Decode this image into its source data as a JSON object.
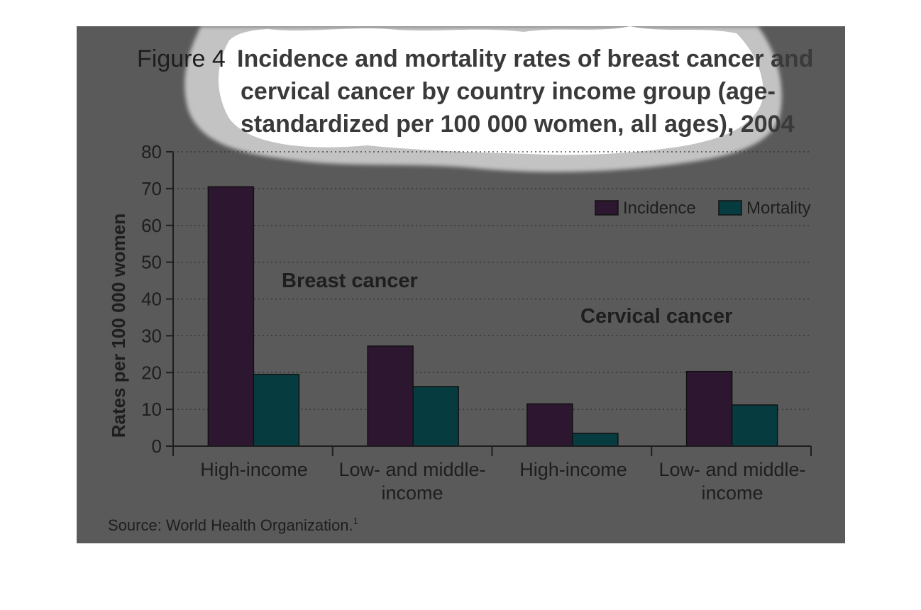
{
  "chart_data": {
    "type": "bar",
    "figure_label": "Figure 4",
    "title_lines": [
      "Incidence and mortality rates of breast cancer and",
      "cervical cancer by country income group (age-",
      "standardized per 100 000 women, all ages), 2004"
    ],
    "ylabel": "Rates per 100 000 women",
    "xlabel": "",
    "ylim": [
      0,
      80
    ],
    "yticks": [
      0,
      10,
      20,
      30,
      40,
      50,
      60,
      70,
      80
    ],
    "categories": [
      [
        "High-income"
      ],
      [
        "Low- and middle-",
        "income"
      ],
      [
        "High-income"
      ],
      [
        "Low- and middle-",
        "income"
      ]
    ],
    "groups": [
      "Breast cancer",
      "Cervical cancer"
    ],
    "series": [
      {
        "name": "Incidence",
        "color": "#2d1630",
        "values": [
          70.5,
          27.2,
          11.5,
          20.3
        ]
      },
      {
        "name": "Mortality",
        "color": "#063c40",
        "values": [
          19.5,
          16.2,
          3.5,
          11.2
        ]
      }
    ],
    "grid": true,
    "legend": "top-right",
    "source": "Source: World Health Organization.",
    "source_sup": "1"
  }
}
